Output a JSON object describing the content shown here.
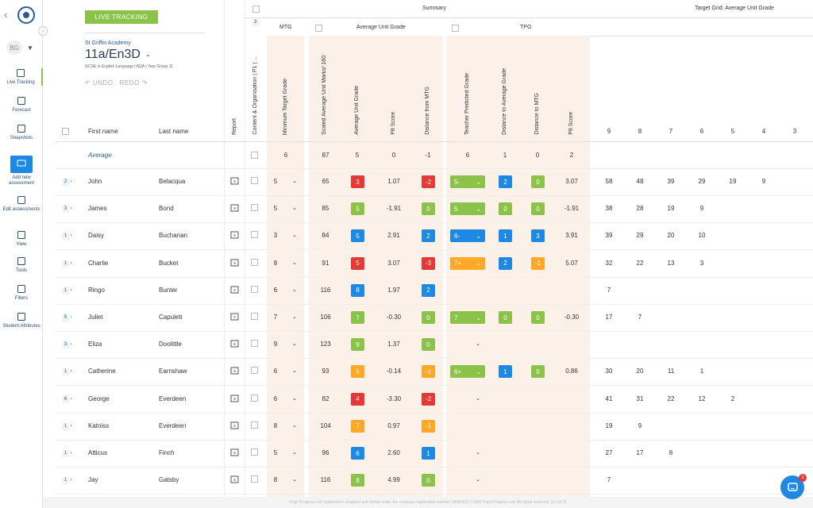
{
  "sidebar": {
    "user_initials": "BG",
    "items": [
      {
        "label": "Live Tracking",
        "icon": "live-tracking-icon"
      },
      {
        "label": "Forecast",
        "icon": "forecast-icon"
      },
      {
        "label": "Snapshots",
        "icon": "snapshots-icon"
      },
      {
        "label": "Add new assessment",
        "icon": "add-assessment-icon"
      },
      {
        "label": "Edit assessments",
        "icon": "edit-assessments-icon"
      },
      {
        "label": "View",
        "icon": "view-icon"
      },
      {
        "label": "Tools",
        "icon": "tools-icon"
      },
      {
        "label": "Filters",
        "icon": "filter-icon"
      },
      {
        "label": "Student Attributes",
        "icon": "student-attributes-icon"
      }
    ]
  },
  "panel": {
    "badge": "LIVE TRACKING",
    "school": "St Griffin Academy",
    "class_name": "11a/En3D",
    "course": "GCSE in English Language | AQA | Year Group 11",
    "undo": "UNDO",
    "redo": "REDO"
  },
  "headers": {
    "summary": "Summary",
    "target_grid": "Target Grid: Average Unit Grade",
    "mtg": "MTG",
    "avg_unit_grade": "Average Unit Grade",
    "tpg": "TPG",
    "count_badge": "3",
    "first_name": "First name",
    "last_name": "Last name",
    "report": "Report",
    "assessment": "Content & Organisation | P1 | ...",
    "min_target_grade": "Minimum Target Grade",
    "scaled_avg": "Scaled Average Unit Marks/ 160",
    "avg_unit": "Average Unit Grade",
    "p8": "P8 Score",
    "dist_mtg": "Distance from MTG",
    "tpg_full": "Teacher Predicted Grade",
    "dist_avg": "Distance to Average Grade",
    "dist_to_mtg": "Distance to MTG",
    "p8b": "P8 Score",
    "grid_cols": [
      "9",
      "8",
      "7",
      "6",
      "5",
      "4",
      "3"
    ]
  },
  "average": {
    "label": "Average",
    "mtg": "6",
    "scaled": "87",
    "avg": "5",
    "p8": "0",
    "dist": "-1",
    "tpg": "6",
    "dist_avg": "1",
    "dist_mtg": "0",
    "p8b": "2"
  },
  "students": [
    {
      "ind": "2",
      "first": "John",
      "last": "Belacqua",
      "mtg": "5",
      "scaled": "65",
      "avg": "3",
      "avgc": "#e53935",
      "p8": "1.07",
      "dist": "-2",
      "distc": "#e53935",
      "tpg": "5-",
      "tpgc": "#8bc34a",
      "da": "2",
      "dac": "#1e88e5",
      "dm": "0",
      "dmc": "#8bc34a",
      "p8b": "3.07",
      "grid": [
        "58",
        "48",
        "39",
        "29",
        "19",
        "9",
        ""
      ]
    },
    {
      "ind": "3",
      "first": "James",
      "last": "Bond",
      "mtg": "5",
      "scaled": "85",
      "avg": "5",
      "avgc": "#8bc34a",
      "p8": "-1.91",
      "dist": "0",
      "distc": "#8bc34a",
      "tpg": "5",
      "tpgc": "#8bc34a",
      "da": "0",
      "dac": "#8bc34a",
      "dm": "0",
      "dmc": "#8bc34a",
      "p8b": "-1.91",
      "grid": [
        "38",
        "28",
        "19",
        "9",
        "",
        "",
        ""
      ]
    },
    {
      "ind": "1",
      "first": "Daisy",
      "last": "Buchanan",
      "mtg": "3",
      "scaled": "84",
      "avg": "5",
      "avgc": "#1e88e5",
      "p8": "2.91",
      "dist": "2",
      "distc": "#1e88e5",
      "tpg": "6-",
      "tpgc": "#1e88e5",
      "da": "1",
      "dac": "#1e88e5",
      "dm": "3",
      "dmc": "#1e88e5",
      "p8b": "3.91",
      "grid": [
        "39",
        "29",
        "20",
        "10",
        "",
        "",
        ""
      ]
    },
    {
      "ind": "1",
      "first": "Charlie",
      "last": "Bucket",
      "mtg": "8",
      "scaled": "91",
      "avg": "5",
      "avgc": "#e53935",
      "p8": "3.07",
      "dist": "-3",
      "distc": "#e53935",
      "tpg": "7+",
      "tpgc": "#ffa726",
      "da": "2",
      "dac": "#1e88e5",
      "dm": "-1",
      "dmc": "#ffa726",
      "p8b": "5.07",
      "grid": [
        "32",
        "22",
        "13",
        "3",
        "",
        "",
        ""
      ]
    },
    {
      "ind": "1",
      "first": "Ringo",
      "last": "Bunter",
      "mtg": "6",
      "scaled": "116",
      "avg": "8",
      "avgc": "#1e88e5",
      "p8": "1.97",
      "dist": "2",
      "distc": "#1e88e5",
      "tpg": "",
      "tpgc": "",
      "da": "",
      "dac": "",
      "dm": "",
      "dmc": "",
      "p8b": "",
      "grid": [
        "7",
        "",
        "",
        "",
        "",
        "",
        ""
      ]
    },
    {
      "ind": "5",
      "first": "Juliet",
      "last": "Capuleti",
      "mtg": "7",
      "scaled": "106",
      "avg": "7",
      "avgc": "#8bc34a",
      "p8": "-0.30",
      "dist": "0",
      "distc": "#8bc34a",
      "tpg": "7",
      "tpgc": "#8bc34a",
      "da": "0",
      "dac": "#8bc34a",
      "dm": "0",
      "dmc": "#8bc34a",
      "p8b": "-0.30",
      "grid": [
        "17",
        "7",
        "",
        "",
        "",
        "",
        ""
      ]
    },
    {
      "ind": "3",
      "first": "Eliza",
      "last": "Doolittle",
      "mtg": "9",
      "scaled": "123",
      "avg": "9",
      "avgc": "#8bc34a",
      "p8": "1.37",
      "dist": "0",
      "distc": "#8bc34a",
      "tpg": "",
      "tpgc": "none",
      "da": "",
      "dac": "",
      "dm": "",
      "dmc": "",
      "p8b": "",
      "grid": [
        "",
        "",
        "",
        "",
        "",
        "",
        ""
      ]
    },
    {
      "ind": "1",
      "first": "Catherine",
      "last": "Earnshaw",
      "mtg": "6",
      "scaled": "93",
      "avg": "5",
      "avgc": "#ffa726",
      "p8": "-0.14",
      "dist": "-1",
      "distc": "#ffa726",
      "tpg": "6+",
      "tpgc": "#8bc34a",
      "da": "1",
      "dac": "#1e88e5",
      "dm": "0",
      "dmc": "#8bc34a",
      "p8b": "0.86",
      "grid": [
        "30",
        "20",
        "11",
        "1",
        "",
        "",
        ""
      ]
    },
    {
      "ind": "6",
      "first": "George",
      "last": "Everdeen",
      "mtg": "6",
      "scaled": "82",
      "avg": "4",
      "avgc": "#e53935",
      "p8": "-3.30",
      "dist": "-2",
      "distc": "#e53935",
      "tpg": "",
      "tpgc": "none",
      "da": "",
      "dac": "",
      "dm": "",
      "dmc": "",
      "p8b": "",
      "grid": [
        "41",
        "31",
        "22",
        "12",
        "2",
        "",
        ""
      ]
    },
    {
      "ind": "1",
      "first": "Katniss",
      "last": "Everdeen",
      "mtg": "8",
      "scaled": "104",
      "avg": "7",
      "avgc": "#ffa726",
      "p8": "0.97",
      "dist": "-1",
      "distc": "#ffa726",
      "tpg": "",
      "tpgc": "",
      "da": "",
      "dac": "",
      "dm": "",
      "dmc": "",
      "p8b": "",
      "grid": [
        "19",
        "9",
        "",
        "",
        "",
        "",
        ""
      ]
    },
    {
      "ind": "1",
      "first": "Atticus",
      "last": "Finch",
      "mtg": "5",
      "scaled": "96",
      "avg": "6",
      "avgc": "#1e88e5",
      "p8": "2.60",
      "dist": "1",
      "distc": "#1e88e5",
      "tpg": "",
      "tpgc": "none",
      "da": "",
      "dac": "",
      "dm": "",
      "dmc": "",
      "p8b": "",
      "grid": [
        "27",
        "17",
        "8",
        "",
        "",
        "",
        ""
      ]
    },
    {
      "ind": "1",
      "first": "Jay",
      "last": "Gatsby",
      "mtg": "8",
      "scaled": "116",
      "avg": "8",
      "avgc": "#8bc34a",
      "p8": "4.99",
      "dist": "0",
      "distc": "#8bc34a",
      "tpg": "",
      "tpgc": "none",
      "da": "",
      "dac": "",
      "dm": "",
      "dmc": "",
      "p8b": "",
      "grid": [
        "7",
        "",
        "",
        "",
        "",
        "",
        ""
      ]
    }
  ],
  "footer": "Pupil Progress Ltd registered in England and Wales under the company registration number 08986423    |    2025 Pupil Progress Ltd. All rights reserved. (v1.63.3)",
  "chat": {
    "count": "1"
  }
}
